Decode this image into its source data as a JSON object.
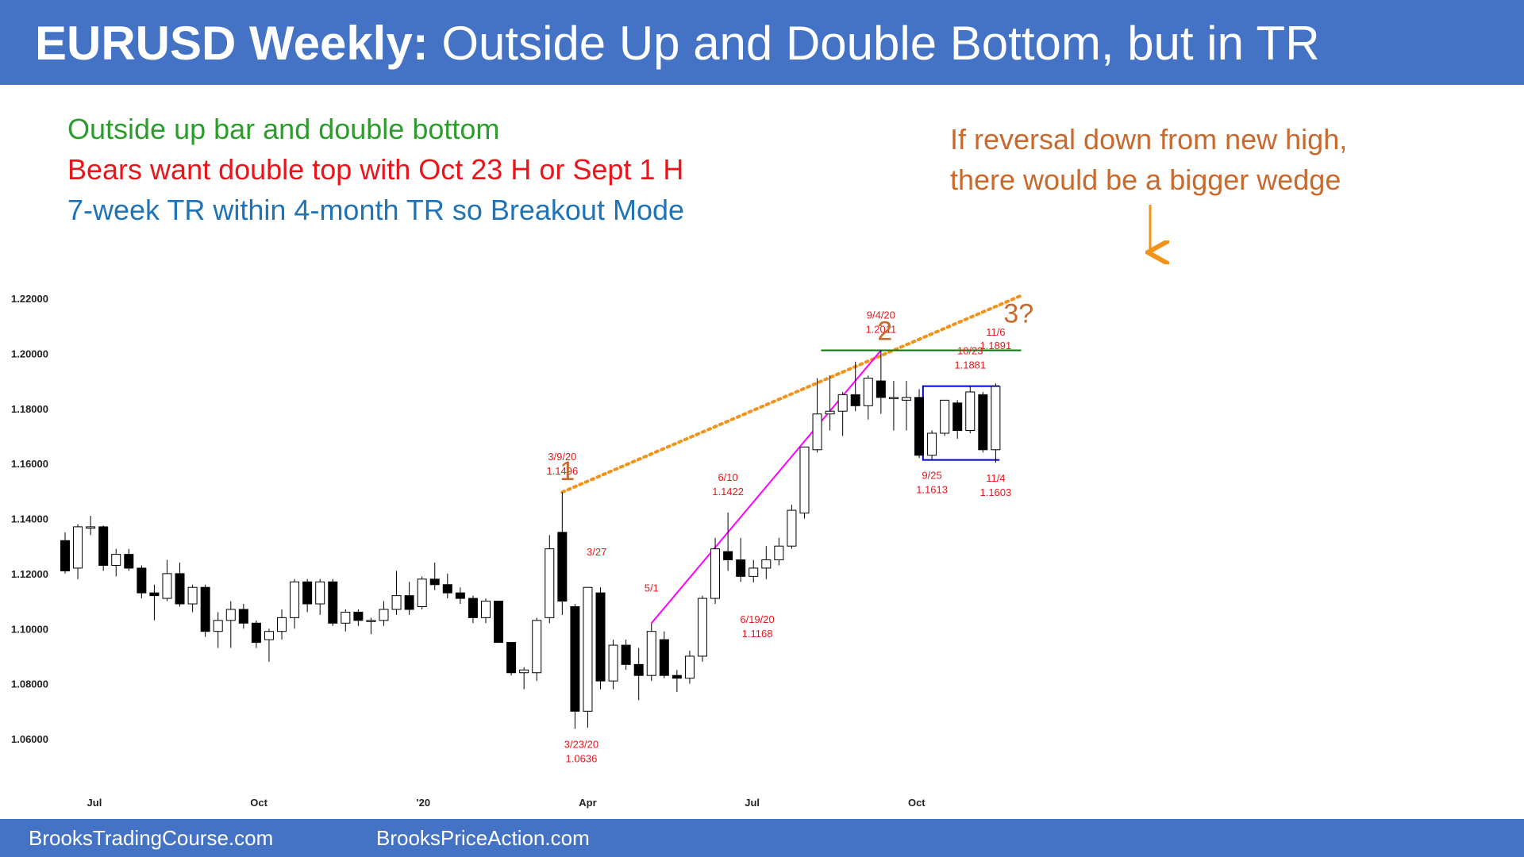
{
  "header": {
    "title_bold": "EURUSD Weekly:",
    "title_rest": " Outside Up and Double Bottom, but in TR"
  },
  "notes": {
    "line1": "Outside up bar and double bottom",
    "line2": "Bears want double top with Oct 23 H or Sept 1 H",
    "line3": "7-week TR within 4-month TR so Breakout Mode",
    "wedge_line1": "If reversal down from new high,",
    "wedge_line2": "there would be a bigger wedge"
  },
  "footer": {
    "left": "BrooksTradingCourse.com",
    "right": "BrooksPriceAction.com"
  },
  "colors": {
    "header_bg": "#4472c4",
    "green_text": "#2e9b2e",
    "red_text": "#e8151b",
    "blue_text": "#1f73b7",
    "orange_text": "#c8692d",
    "orange_line": "#f39219",
    "magenta_line": "#ff00ff",
    "green_line": "#0a7a0a",
    "range_box": "#0000cc",
    "label_red": "#e8151b"
  },
  "chart_data": {
    "type": "candlestick",
    "title": "EURUSD Weekly",
    "ylim": [
      1.045,
      1.235
    ],
    "yticks": [
      1.22,
      1.2,
      1.18,
      1.16,
      1.14,
      1.12,
      1.1,
      1.08,
      1.06
    ],
    "ytick_labels": [
      "1.22000",
      "1.20000",
      "1.18000",
      "1.16000",
      "1.14000",
      "1.12000",
      "1.10000",
      "1.08000",
      "1.06000"
    ],
    "xtick_labels": [
      {
        "label": "Jul",
        "bar": 2.3
      },
      {
        "label": "Oct",
        "bar": 15.2
      },
      {
        "label": "'20",
        "bar": 28.1
      },
      {
        "label": "Apr",
        "bar": 41.0
      },
      {
        "label": "Jul",
        "bar": 53.9
      },
      {
        "label": "Oct",
        "bar": 66.8
      }
    ],
    "bars": [
      [
        1.132,
        1.135,
        1.12,
        1.121
      ],
      [
        1.122,
        1.138,
        1.118,
        1.137
      ],
      [
        1.1365,
        1.141,
        1.134,
        1.137
      ],
      [
        1.137,
        1.1375,
        1.121,
        1.123
      ],
      [
        1.123,
        1.129,
        1.119,
        1.127
      ],
      [
        1.127,
        1.129,
        1.121,
        1.122
      ],
      [
        1.122,
        1.123,
        1.111,
        1.113
      ],
      [
        1.113,
        1.116,
        1.103,
        1.112
      ],
      [
        1.111,
        1.125,
        1.11,
        1.12
      ],
      [
        1.12,
        1.124,
        1.108,
        1.109
      ],
      [
        1.109,
        1.116,
        1.106,
        1.115
      ],
      [
        1.115,
        1.116,
        1.097,
        1.099
      ],
      [
        1.099,
        1.106,
        1.093,
        1.103
      ],
      [
        1.103,
        1.11,
        1.093,
        1.107
      ],
      [
        1.107,
        1.109,
        1.1,
        1.102
      ],
      [
        1.102,
        1.103,
        1.093,
        1.095
      ],
      [
        1.096,
        1.1,
        1.088,
        1.099
      ],
      [
        1.099,
        1.107,
        1.096,
        1.104
      ],
      [
        1.104,
        1.118,
        1.1,
        1.117
      ],
      [
        1.117,
        1.118,
        1.106,
        1.109
      ],
      [
        1.109,
        1.118,
        1.105,
        1.117
      ],
      [
        1.117,
        1.118,
        1.101,
        1.102
      ],
      [
        1.102,
        1.107,
        1.099,
        1.106
      ],
      [
        1.106,
        1.107,
        1.101,
        1.103
      ],
      [
        1.103,
        1.104,
        1.098,
        1.103
      ],
      [
        1.103,
        1.11,
        1.101,
        1.107
      ],
      [
        1.107,
        1.121,
        1.105,
        1.112
      ],
      [
        1.112,
        1.117,
        1.105,
        1.107
      ],
      [
        1.108,
        1.119,
        1.107,
        1.118
      ],
      [
        1.118,
        1.124,
        1.114,
        1.116
      ],
      [
        1.116,
        1.12,
        1.111,
        1.113
      ],
      [
        1.113,
        1.115,
        1.109,
        1.111
      ],
      [
        1.111,
        1.112,
        1.102,
        1.104
      ],
      [
        1.104,
        1.111,
        1.102,
        1.11
      ],
      [
        1.11,
        1.11,
        1.095,
        1.095
      ],
      [
        1.095,
        1.095,
        1.083,
        1.084
      ],
      [
        1.084,
        1.086,
        1.078,
        1.085
      ],
      [
        1.084,
        1.104,
        1.081,
        1.103
      ],
      [
        1.104,
        1.134,
        1.102,
        1.129
      ],
      [
        1.135,
        1.1496,
        1.105,
        1.11
      ],
      [
        1.108,
        1.109,
        1.0636,
        1.07
      ],
      [
        1.07,
        1.115,
        1.064,
        1.115
      ],
      [
        1.113,
        1.115,
        1.078,
        1.081
      ],
      [
        1.081,
        1.096,
        1.078,
        1.094
      ],
      [
        1.094,
        1.096,
        1.085,
        1.087
      ],
      [
        1.087,
        1.093,
        1.074,
        1.083
      ],
      [
        1.083,
        1.102,
        1.081,
        1.099
      ],
      [
        1.096,
        1.099,
        1.082,
        1.083
      ],
      [
        1.083,
        1.085,
        1.077,
        1.082
      ],
      [
        1.082,
        1.092,
        1.08,
        1.09
      ],
      [
        1.09,
        1.112,
        1.088,
        1.111
      ],
      [
        1.111,
        1.133,
        1.109,
        1.129
      ],
      [
        1.128,
        1.1422,
        1.121,
        1.125
      ],
      [
        1.125,
        1.133,
        1.117,
        1.119
      ],
      [
        1.119,
        1.125,
        1.1168,
        1.122
      ],
      [
        1.122,
        1.13,
        1.118,
        1.125
      ],
      [
        1.125,
        1.133,
        1.123,
        1.13
      ],
      [
        1.13,
        1.145,
        1.129,
        1.143
      ],
      [
        1.142,
        1.166,
        1.14,
        1.166
      ],
      [
        1.165,
        1.191,
        1.164,
        1.178
      ],
      [
        1.178,
        1.192,
        1.172,
        1.179
      ],
      [
        1.179,
        1.186,
        1.17,
        1.185
      ],
      [
        1.185,
        1.197,
        1.179,
        1.181
      ],
      [
        1.181,
        1.192,
        1.176,
        1.191
      ],
      [
        1.19,
        1.2011,
        1.178,
        1.184
      ],
      [
        1.184,
        1.19,
        1.172,
        1.184
      ],
      [
        1.183,
        1.19,
        1.172,
        1.184
      ],
      [
        1.184,
        1.187,
        1.162,
        1.163
      ],
      [
        1.163,
        1.172,
        1.1613,
        1.171
      ],
      [
        1.171,
        1.183,
        1.17,
        1.183
      ],
      [
        1.182,
        1.183,
        1.169,
        1.172
      ],
      [
        1.172,
        1.1881,
        1.171,
        1.186
      ],
      [
        1.185,
        1.186,
        1.164,
        1.165
      ],
      [
        1.165,
        1.1891,
        1.1603,
        1.188
      ]
    ],
    "annotations": [
      {
        "bar": 39,
        "price": 1.1496,
        "date": "3/9/20",
        "value": "1.1496",
        "pos": "above"
      },
      {
        "bar": 40.5,
        "price": 1.0636,
        "date": "3/23/20",
        "value": "1.0636",
        "pos": "below"
      },
      {
        "bar": 41.7,
        "price": 1.115,
        "date": "3/27",
        "value": "",
        "pos": "above"
      },
      {
        "bar": 46,
        "price": 1.102,
        "date": "5/1",
        "value": "",
        "pos": "above"
      },
      {
        "bar": 52,
        "price": 1.1422,
        "date": "6/10",
        "value": "1.1422",
        "pos": "above"
      },
      {
        "bar": 54.3,
        "price": 1.109,
        "date": "6/19/20",
        "value": "1.1168",
        "pos": "below"
      },
      {
        "bar": 64,
        "price": 1.2011,
        "date": "9/4/20",
        "value": "1.2011",
        "pos": "above"
      },
      {
        "bar": 68,
        "price": 1.1613,
        "date": "9/25",
        "value": "1.1613",
        "pos": "below"
      },
      {
        "bar": 71,
        "price": 1.1881,
        "date": "10/23",
        "value": "1.1881",
        "pos": "above"
      },
      {
        "bar": 73,
        "price": 1.1891,
        "date": "11/6",
        "value": "1.1891",
        "pos": "above2"
      },
      {
        "bar": 73,
        "price": 1.1603,
        "date": "11/4",
        "value": "1.1603",
        "pos": "below"
      }
    ],
    "wedge_labels": [
      {
        "text": "1",
        "bar": 39.4,
        "price": 1.154
      },
      {
        "text": "2",
        "bar": 64.3,
        "price": 1.2048
      },
      {
        "text": "3?",
        "bar": 74.8,
        "price": 1.2112
      }
    ],
    "lines": {
      "wedge_trendline": {
        "from": [
          39,
          1.1496
        ],
        "to": [
          75,
          1.221
        ]
      },
      "bull_channel": {
        "from": [
          46,
          1.102
        ],
        "to": [
          64,
          1.2011
        ]
      },
      "double_top_line": {
        "from": [
          59.3,
          1.2011
        ],
        "to": [
          75,
          1.2011
        ]
      },
      "trading_range": {
        "x0": 67.3,
        "x1": 73.3,
        "top": 1.1881,
        "bottom": 1.1613
      }
    }
  }
}
